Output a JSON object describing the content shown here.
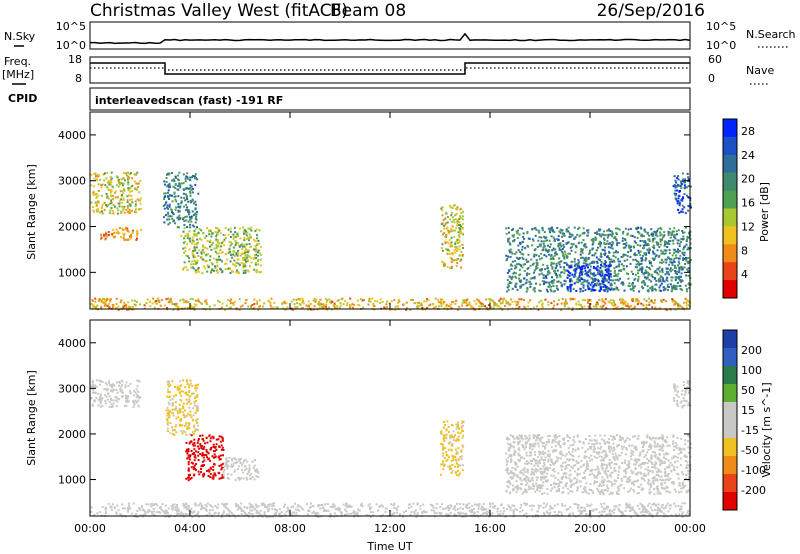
{
  "header": {
    "station": "Christmas Valley West (fitACF)",
    "beam": "Beam 08",
    "date": "26/Sep/2016"
  },
  "summary_panels": {
    "nsky_label": "N.Sky",
    "nsky_ticks": [
      "10^5",
      "10^0"
    ],
    "nsearch_label": "N.Search",
    "nsearch_ticks": [
      "10^5",
      "10^0"
    ],
    "freq_label": "Freq.",
    "freq_unit": "[MHz]",
    "freq_ticks": [
      "18",
      "8"
    ],
    "nave_label": "Nave",
    "nave_ticks": [
      "60",
      "0"
    ],
    "cpid_label": "CPID",
    "cpid_text": "interleavedscan (fast) -191 RF"
  },
  "colors": {
    "power_scale": [
      "#0022ff",
      "#1f4fc4",
      "#2f6e9a",
      "#3f8a6e",
      "#4ea050",
      "#a8c832",
      "#f0c020",
      "#f08a18",
      "#e84418",
      "#e00000"
    ],
    "velocity_scale": [
      "#1f3fa8",
      "#2f5fc0",
      "#2a7a4a",
      "#5cb030",
      "#c8c8c4",
      "#c8c8c4",
      "#f0c020",
      "#f08a18",
      "#e84418",
      "#e00000"
    ]
  },
  "chart_data": [
    {
      "type": "heatmap",
      "panel": "power",
      "ylabel": "Slant Range [km]",
      "yticks": [
        1000,
        2000,
        3000,
        4000
      ],
      "ylim": [
        200,
        4500
      ],
      "xlim": [
        0,
        24
      ],
      "colorbar_label": "Power [dB]",
      "colorbar_ticks": [
        28,
        24,
        20,
        16,
        12,
        8,
        4
      ],
      "colorbar_range": [
        0,
        30
      ],
      "echo_regions": [
        {
          "t0": 0.0,
          "t1": 2.0,
          "r0": 2300,
          "r1": 3200,
          "level": 12
        },
        {
          "t0": 0.4,
          "t1": 2.0,
          "r0": 1700,
          "r1": 2000,
          "level": 8
        },
        {
          "t0": 2.9,
          "t1": 4.3,
          "r0": 2000,
          "r1": 3200,
          "level": 20
        },
        {
          "t0": 3.6,
          "t1": 6.8,
          "r0": 1000,
          "r1": 2000,
          "level": 14
        },
        {
          "t0": 14.0,
          "t1": 14.9,
          "r0": 1100,
          "r1": 2500,
          "level": 12
        },
        {
          "t0": 16.6,
          "t1": 24.0,
          "r0": 600,
          "r1": 2000,
          "level": 20
        },
        {
          "t0": 19.0,
          "t1": 20.8,
          "r0": 600,
          "r1": 1200,
          "level": 28
        },
        {
          "t0": 23.3,
          "t1": 24.0,
          "r0": 2300,
          "r1": 3200,
          "level": 24
        },
        {
          "t0": 0.0,
          "t1": 24.0,
          "r0": 200,
          "r1": 450,
          "level": 10
        }
      ]
    },
    {
      "type": "heatmap",
      "panel": "velocity",
      "ylabel": "Slant Range [km]",
      "xlabel": "Time UT",
      "xticks": [
        "00:00",
        "04:00",
        "08:00",
        "12:00",
        "16:00",
        "20:00",
        "00:00"
      ],
      "yticks": [
        1000,
        2000,
        3000,
        4000
      ],
      "ylim": [
        200,
        4500
      ],
      "xlim": [
        0,
        24
      ],
      "colorbar_label": "Velocity [m s^-1]",
      "colorbar_ticks": [
        200,
        100,
        50,
        15,
        -15,
        -50,
        -100,
        -200
      ],
      "colorbar_range": [
        -250,
        250
      ],
      "echo_regions": [
        {
          "t0": 0.0,
          "t1": 2.0,
          "r0": 2600,
          "r1": 3200,
          "level": 0
        },
        {
          "t0": 3.0,
          "t1": 4.3,
          "r0": 2000,
          "r1": 3200,
          "level": -60
        },
        {
          "t0": 3.8,
          "t1": 5.3,
          "r0": 1000,
          "r1": 2000,
          "level": -220
        },
        {
          "t0": 5.3,
          "t1": 6.7,
          "r0": 1000,
          "r1": 1500,
          "level": -30
        },
        {
          "t0": 14.0,
          "t1": 14.9,
          "r0": 1100,
          "r1": 2300,
          "level": -60
        },
        {
          "t0": 16.6,
          "t1": 24.0,
          "r0": 700,
          "r1": 2000,
          "level": 0
        },
        {
          "t0": 23.3,
          "t1": 24.0,
          "r0": 2600,
          "r1": 3200,
          "level": 0
        },
        {
          "t0": 0.0,
          "t1": 24.0,
          "r0": 200,
          "r1": 500,
          "level": -30
        }
      ]
    }
  ]
}
